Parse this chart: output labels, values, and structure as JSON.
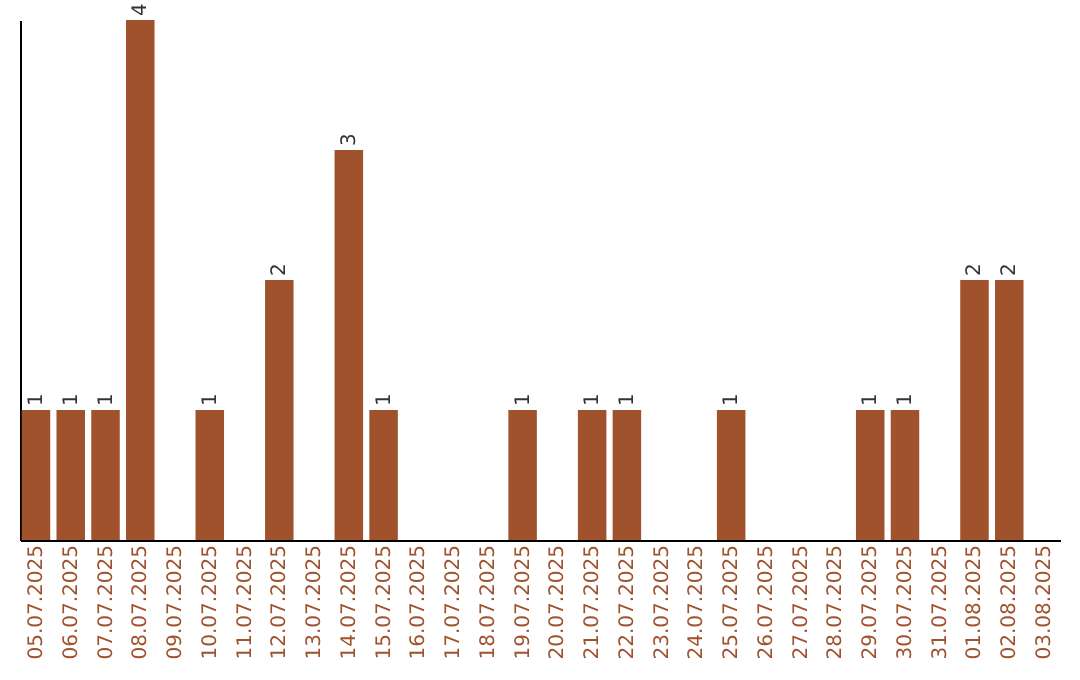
{
  "chart_data": {
    "type": "bar",
    "categories": [
      "05.07.2025",
      "06.07.2025",
      "07.07.2025",
      "08.07.2025",
      "09.07.2025",
      "10.07.2025",
      "11.07.2025",
      "12.07.2025",
      "13.07.2025",
      "14.07.2025",
      "15.07.2025",
      "16.07.2025",
      "17.07.2025",
      "18.07.2025",
      "19.07.2025",
      "20.07.2025",
      "21.07.2025",
      "22.07.2025",
      "23.07.2025",
      "24.07.2025",
      "25.07.2025",
      "26.07.2025",
      "27.07.2025",
      "28.07.2025",
      "29.07.2025",
      "30.07.2025",
      "31.07.2025",
      "01.08.2025",
      "02.08.2025",
      "03.08.2025"
    ],
    "values": [
      1,
      1,
      1,
      4,
      0,
      1,
      0,
      2,
      0,
      3,
      1,
      0,
      0,
      0,
      1,
      0,
      1,
      1,
      0,
      0,
      1,
      0,
      0,
      0,
      1,
      1,
      0,
      2,
      2,
      0
    ],
    "value_labels": [
      "1",
      "1",
      "1",
      "4",
      null,
      "1",
      null,
      "2",
      null,
      "3",
      "1",
      null,
      null,
      null,
      "1",
      null,
      "1",
      "1",
      null,
      null,
      "1",
      null,
      null,
      null,
      "1",
      "1",
      null,
      "2",
      "2",
      null
    ],
    "color": "#a0522d",
    "grid": false,
    "tick_labels": "x"
  }
}
